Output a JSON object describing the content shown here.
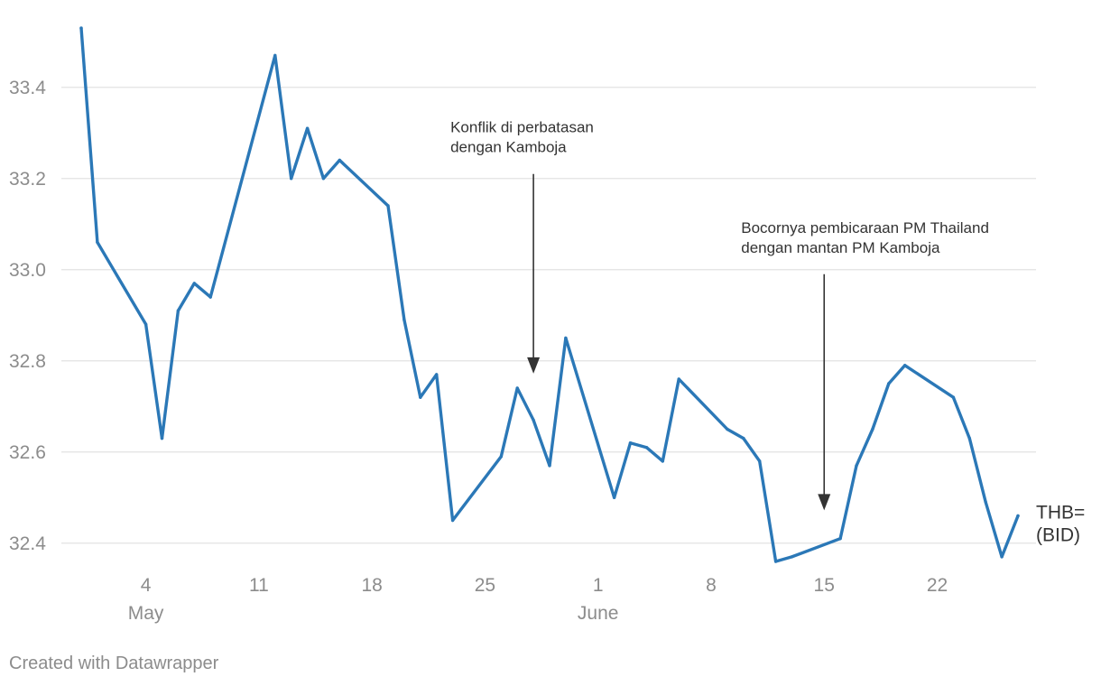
{
  "chart_data": {
    "type": "line",
    "title": "",
    "xlabel": "",
    "ylabel": "",
    "x": [
      "2025-04-30",
      "2025-05-01",
      "2025-05-04",
      "2025-05-05",
      "2025-05-06",
      "2025-05-07",
      "2025-05-08",
      "2025-05-12",
      "2025-05-13",
      "2025-05-14",
      "2025-05-15",
      "2025-05-16",
      "2025-05-19",
      "2025-05-20",
      "2025-05-21",
      "2025-05-22",
      "2025-05-23",
      "2025-05-26",
      "2025-05-27",
      "2025-05-28",
      "2025-05-29",
      "2025-05-30",
      "2025-06-02",
      "2025-06-03",
      "2025-06-04",
      "2025-06-05",
      "2025-06-06",
      "2025-06-09",
      "2025-06-10",
      "2025-06-11",
      "2025-06-12",
      "2025-06-13",
      "2025-06-16",
      "2025-06-17",
      "2025-06-18",
      "2025-06-19",
      "2025-06-20",
      "2025-06-23",
      "2025-06-24",
      "2025-06-25",
      "2025-06-26",
      "2025-06-27"
    ],
    "series": [
      {
        "name": "THB=\n(BID)",
        "color": "#2b78b7",
        "values": [
          33.53,
          33.06,
          32.88,
          32.63,
          32.91,
          32.97,
          32.94,
          33.47,
          33.2,
          33.31,
          33.2,
          33.24,
          33.14,
          32.89,
          32.72,
          32.77,
          32.45,
          32.59,
          32.74,
          32.67,
          32.57,
          32.85,
          32.5,
          32.62,
          32.61,
          32.58,
          32.76,
          32.65,
          32.63,
          32.58,
          32.36,
          32.37,
          32.41,
          32.57,
          32.65,
          32.75,
          32.79,
          32.72,
          32.63,
          32.49,
          32.37,
          32.46
        ]
      }
    ],
    "xlim": [
      "2025-04-30",
      "2025-06-27"
    ],
    "ylim": [
      32.35,
      33.55
    ],
    "yticks": [
      32.4,
      32.6,
      32.8,
      33.0,
      33.2,
      33.4
    ],
    "ytick_labels": [
      "32.4",
      "32.6",
      "32.8",
      "33.0",
      "33.2",
      "33.4"
    ],
    "xticks": [
      "2025-05-04",
      "2025-05-11",
      "2025-05-18",
      "2025-05-25",
      "2025-06-01",
      "2025-06-08",
      "2025-06-15",
      "2025-06-22"
    ],
    "xtick_labels": [
      "4",
      "11",
      "18",
      "25",
      "1",
      "8",
      "15",
      "22"
    ],
    "month_labels": [
      {
        "date": "2025-05-04",
        "label": "May"
      },
      {
        "date": "2025-06-01",
        "label": "June"
      }
    ],
    "grid": true,
    "legend": "none",
    "annotations": [
      {
        "lines": [
          "Konflik di perbatasan",
          "dengan Kamboja"
        ],
        "x": "2025-05-28",
        "y_from": 33.21,
        "y_to": 32.78
      },
      {
        "lines": [
          "Bocornya pembicaraan PM Thailand",
          "dengan mantan PM Kamboja"
        ],
        "x": "2025-06-15",
        "y_from": 32.99,
        "y_to": 32.48
      }
    ]
  },
  "footer": {
    "credit": "Created with Datawrapper"
  }
}
